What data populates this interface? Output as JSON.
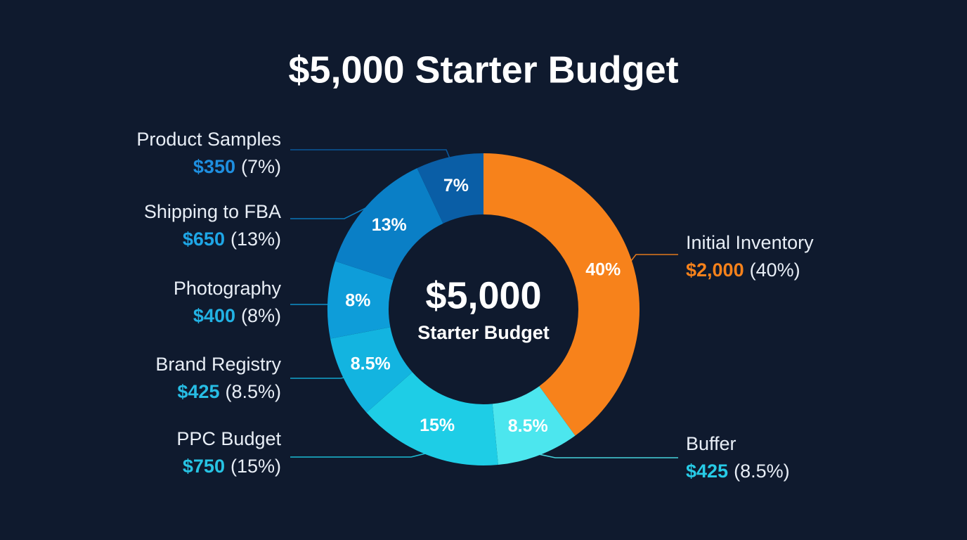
{
  "chart_data": {
    "type": "donut",
    "title": "$5,000 Starter Budget",
    "center_label": "$5,000",
    "center_sublabel": "Starter Budget",
    "categories": [
      "Initial Inventory",
      "Buffer",
      "PPC Budget",
      "Brand Registry",
      "Photography",
      "Shipping to FBA",
      "Product Samples"
    ],
    "values": [
      40,
      8.5,
      15,
      8.5,
      8,
      13,
      7
    ],
    "value_labels": [
      "40%",
      "8.5%",
      "15%",
      "8.5%",
      "8%",
      "13%",
      "7%"
    ],
    "colors": [
      "#f7821b",
      "#4ce6ee",
      "#1ecde6",
      "#13b4e0",
      "#0e9dd9",
      "#0a7fc6",
      "#0a5ea6"
    ],
    "amounts": [
      2000,
      425,
      750,
      425,
      400,
      650,
      350
    ],
    "amount_labels": [
      "$2,000",
      "$425",
      "$750",
      "$425",
      "$400",
      "$650",
      "$350"
    ],
    "amount_colors": [
      "#f7821b",
      "#27cbe6",
      "#27c4e4",
      "#27bde4",
      "#22b2e4",
      "#1ea6e6",
      "#1e8fe0"
    ],
    "percent_labels": [
      "(40%)",
      "(8.5%)",
      "(15%)",
      "(8.5%)",
      "(8%)",
      "(13%)",
      "(7%)"
    ]
  }
}
